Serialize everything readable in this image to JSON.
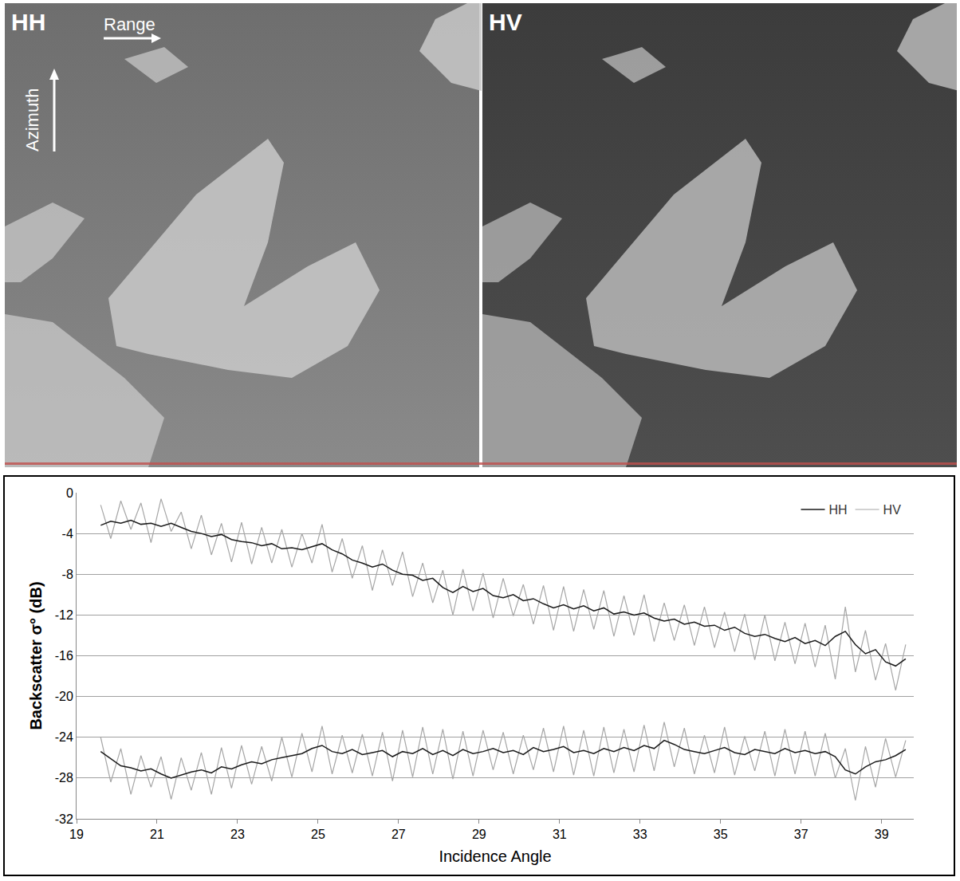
{
  "image_panels": [
    {
      "label": "HH",
      "range_label": "Range",
      "azimuth_label": "Azimuth"
    },
    {
      "label": "HV"
    }
  ],
  "chart_data": {
    "type": "line",
    "xlabel": "Incidence Angle",
    "ylabel": "Backscatter σ° (dB)",
    "x": [
      19.6,
      19.85,
      20.1,
      20.35,
      20.6,
      20.85,
      21.1,
      21.35,
      21.6,
      21.85,
      22.1,
      22.35,
      22.6,
      22.85,
      23.1,
      23.35,
      23.6,
      23.85,
      24.1,
      24.35,
      24.6,
      24.85,
      25.1,
      25.35,
      25.6,
      25.85,
      26.1,
      26.35,
      26.6,
      26.85,
      27.1,
      27.35,
      27.6,
      27.85,
      28.1,
      28.35,
      28.6,
      28.85,
      29.1,
      29.35,
      29.6,
      29.85,
      30.1,
      30.35,
      30.6,
      30.85,
      31.1,
      31.35,
      31.6,
      31.85,
      32.1,
      32.35,
      32.6,
      32.85,
      33.1,
      33.35,
      33.6,
      33.85,
      34.1,
      34.35,
      34.6,
      34.85,
      35.1,
      35.35,
      35.6,
      35.85,
      36.1,
      36.35,
      36.6,
      36.85,
      37.1,
      37.35,
      37.6,
      37.85,
      38.1,
      38.35,
      38.6,
      38.85,
      39.1,
      39.35,
      39.6
    ],
    "series": [
      {
        "name": "HV",
        "color": "#a6a6a6",
        "values": [
          -1.2,
          -4.5,
          -0.8,
          -3.6,
          -1.0,
          -4.9,
          -0.6,
          -3.8,
          -1.9,
          -5.5,
          -2.2,
          -6.1,
          -3.0,
          -6.8,
          -2.9,
          -7.0,
          -3.4,
          -6.9,
          -3.6,
          -7.3,
          -4.0,
          -6.9,
          -3.1,
          -7.8,
          -4.5,
          -8.4,
          -5.2,
          -9.6,
          -5.6,
          -9.1,
          -5.8,
          -10.2,
          -6.9,
          -10.8,
          -7.6,
          -12.0,
          -7.5,
          -11.6,
          -7.9,
          -12.3,
          -8.4,
          -12.1,
          -9.0,
          -12.9,
          -9.1,
          -13.5,
          -9.2,
          -13.6,
          -9.5,
          -13.4,
          -9.6,
          -14.1,
          -10.1,
          -14.0,
          -10.0,
          -14.6,
          -10.8,
          -14.5,
          -11.0,
          -15.0,
          -11.2,
          -15.2,
          -11.7,
          -15.6,
          -11.9,
          -16.4,
          -12.0,
          -16.5,
          -12.7,
          -16.8,
          -12.8,
          -17.1,
          -13.0,
          -18.3,
          -11.2,
          -17.6,
          -13.5,
          -18.4,
          -14.8,
          -19.4,
          -14.9
        ]
      },
      {
        "name": "HV",
        "color": "#a6a6a6",
        "values": [
          -24.0,
          -28.4,
          -25.1,
          -29.6,
          -25.8,
          -28.9,
          -25.9,
          -30.1,
          -26.0,
          -29.2,
          -25.5,
          -29.6,
          -25.0,
          -29.0,
          -24.8,
          -28.6,
          -24.9,
          -28.3,
          -24.0,
          -27.9,
          -23.6,
          -27.4,
          -22.9,
          -27.6,
          -23.8,
          -27.5,
          -23.7,
          -27.8,
          -23.5,
          -28.3,
          -23.3,
          -27.9,
          -23.0,
          -27.6,
          -23.2,
          -28.1,
          -23.4,
          -27.8,
          -23.3,
          -27.2,
          -23.5,
          -27.6,
          -23.8,
          -27.2,
          -23.1,
          -27.4,
          -22.9,
          -27.7,
          -23.3,
          -27.8,
          -23.0,
          -27.5,
          -23.2,
          -27.4,
          -22.8,
          -27.3,
          -22.5,
          -26.9,
          -23.1,
          -27.6,
          -23.8,
          -27.5,
          -23.0,
          -27.7,
          -23.9,
          -27.3,
          -23.4,
          -27.8,
          -23.2,
          -27.6,
          -23.4,
          -27.8,
          -23.6,
          -28.0,
          -25.1,
          -30.2,
          -24.9,
          -28.9,
          -24.1,
          -27.9,
          -24.3
        ]
      },
      {
        "name": "HH",
        "color": "#1a1a1a",
        "values": [
          -3.2,
          -2.8,
          -3.0,
          -2.7,
          -3.1,
          -3.0,
          -3.3,
          -3.0,
          -3.4,
          -3.8,
          -4.0,
          -4.3,
          -4.1,
          -4.6,
          -4.8,
          -4.9,
          -5.2,
          -5.0,
          -5.5,
          -5.4,
          -5.6,
          -5.3,
          -5.0,
          -5.6,
          -6.0,
          -6.6,
          -6.9,
          -7.3,
          -7.0,
          -7.6,
          -8.0,
          -8.1,
          -8.6,
          -8.4,
          -9.3,
          -9.8,
          -9.2,
          -9.7,
          -9.4,
          -10.1,
          -10.3,
          -10.0,
          -10.6,
          -10.4,
          -10.9,
          -11.3,
          -11.0,
          -11.4,
          -11.1,
          -11.6,
          -11.3,
          -11.9,
          -11.7,
          -12.0,
          -11.8,
          -12.3,
          -12.6,
          -12.4,
          -12.9,
          -12.7,
          -13.1,
          -13.0,
          -13.5,
          -13.2,
          -13.8,
          -14.1,
          -13.9,
          -14.3,
          -14.6,
          -14.2,
          -14.8,
          -14.5,
          -15.0,
          -14.1,
          -13.6,
          -14.9,
          -15.8,
          -15.4,
          -16.6,
          -17.0,
          -16.3
        ]
      },
      {
        "name": "HH",
        "color": "#1a1a1a",
        "values": [
          -25.4,
          -26.1,
          -26.8,
          -27.0,
          -27.3,
          -27.1,
          -27.6,
          -28.0,
          -27.7,
          -27.4,
          -27.2,
          -27.5,
          -26.9,
          -27.1,
          -26.7,
          -26.4,
          -26.6,
          -26.2,
          -26.0,
          -25.8,
          -25.6,
          -25.1,
          -24.8,
          -25.4,
          -25.6,
          -25.2,
          -25.7,
          -25.5,
          -25.3,
          -25.9,
          -25.4,
          -25.6,
          -25.1,
          -25.7,
          -25.3,
          -25.8,
          -25.2,
          -25.6,
          -25.4,
          -25.1,
          -25.5,
          -25.3,
          -25.7,
          -25.0,
          -25.4,
          -25.2,
          -24.9,
          -25.5,
          -25.3,
          -25.6,
          -25.1,
          -25.4,
          -25.0,
          -25.3,
          -24.8,
          -25.1,
          -24.3,
          -24.7,
          -25.2,
          -25.4,
          -25.6,
          -25.3,
          -25.0,
          -25.5,
          -25.7,
          -25.2,
          -25.4,
          -25.6,
          -25.1,
          -25.5,
          -25.3,
          -25.6,
          -25.4,
          -25.9,
          -27.2,
          -27.6,
          -26.9,
          -26.4,
          -26.2,
          -25.8,
          -25.2
        ]
      }
    ],
    "xlim": [
      19,
      39.8
    ],
    "xticks": [
      19,
      21,
      23,
      25,
      27,
      29,
      31,
      33,
      35,
      37,
      39
    ],
    "ylim": [
      -32,
      0
    ],
    "yticks": [
      -32,
      -28,
      -24,
      -20,
      -16,
      -12,
      -8,
      -4,
      0
    ],
    "grid": true,
    "legend": "upper right"
  }
}
